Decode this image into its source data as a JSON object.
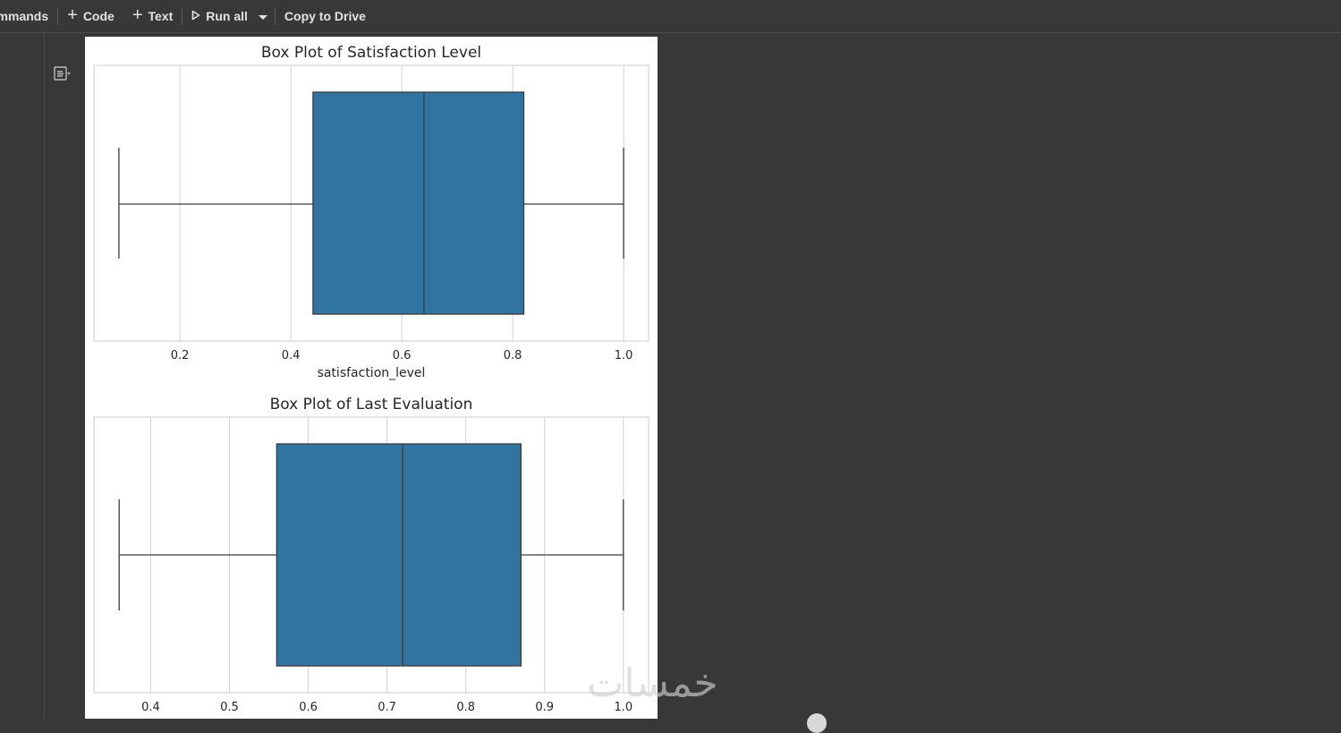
{
  "toolbar": {
    "commands_label": "ommands",
    "code_label": "Code",
    "text_label": "Text",
    "run_all_label": "Run all",
    "copy_label": "Copy to Drive"
  },
  "colors": {
    "box_fill": "#3274a1",
    "grid": "#d0d0d0",
    "axis": "#cccccc",
    "line": "#3a3a3a"
  },
  "watermark": "خمسات",
  "chart_data": [
    {
      "type": "box",
      "title": "Box Plot of Satisfaction Level",
      "xlabel": "satisfaction_level",
      "ylabel": "",
      "xlim": [
        0.045,
        1.045
      ],
      "ticks": [
        0.2,
        0.4,
        0.6,
        0.8,
        1.0
      ],
      "tick_labels": [
        "0.2",
        "0.4",
        "0.6",
        "0.8",
        "1.0"
      ],
      "grid": true,
      "box": {
        "min": 0.09,
        "q1": 0.44,
        "median": 0.64,
        "q3": 0.82,
        "max": 1.0
      }
    },
    {
      "type": "box",
      "title": "Box Plot of Last Evaluation",
      "xlabel": "",
      "ylabel": "",
      "xlim": [
        0.328,
        1.032
      ],
      "ticks": [
        0.4,
        0.5,
        0.6,
        0.7,
        0.8,
        0.9,
        1.0
      ],
      "tick_labels": [
        "0.4",
        "0.5",
        "0.6",
        "0.7",
        "0.8",
        "0.9",
        "1.0"
      ],
      "grid": true,
      "box": {
        "min": 0.36,
        "q1": 0.56,
        "median": 0.72,
        "q3": 0.87,
        "max": 1.0
      }
    }
  ]
}
